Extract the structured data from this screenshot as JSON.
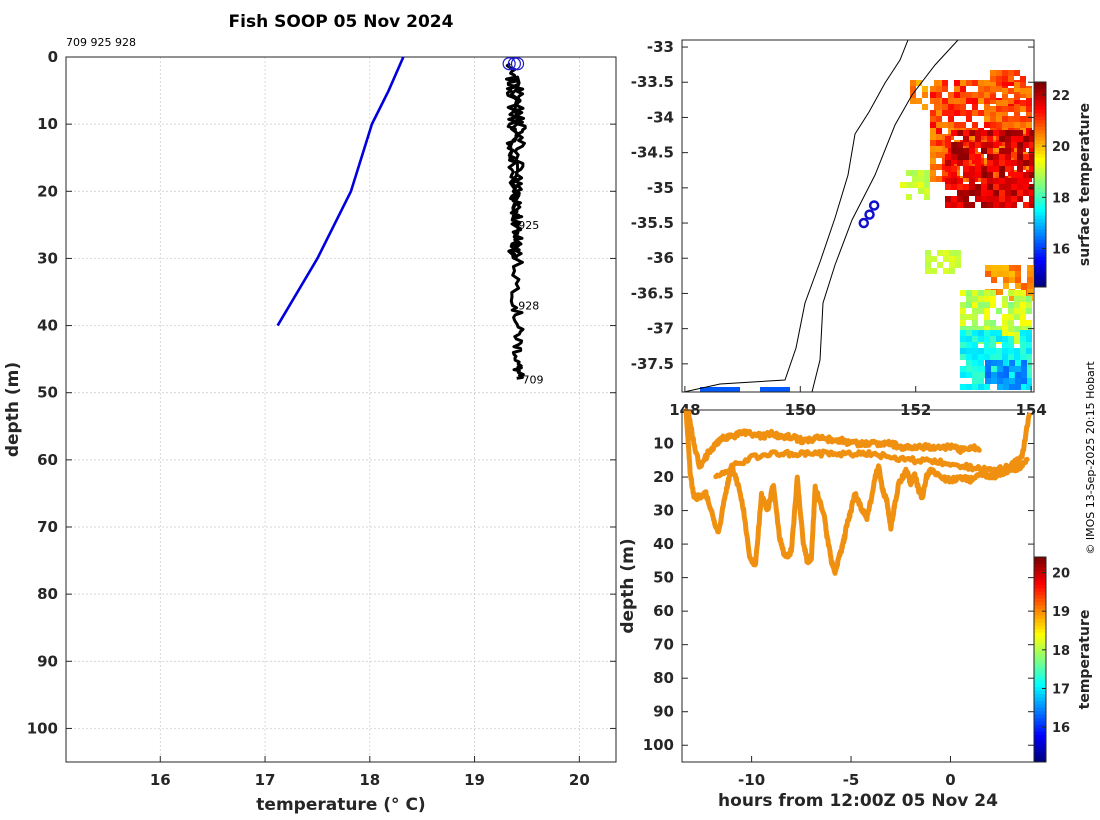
{
  "title": "Fish SOOP 05 Nov 2024",
  "credit": "© IMOS 13-Sep-2025 20:15 Hobart",
  "chart_data": [
    {
      "type": "line",
      "name": "temperature-profile",
      "ids_label": "709 925 928",
      "xlabel": "temperature (° C)",
      "ylabel": "depth (m)",
      "xlim": [
        15.1,
        20.35
      ],
      "ylim": [
        105,
        0
      ],
      "xticks": [
        "16",
        "17",
        "18",
        "19",
        "20"
      ],
      "yticks": [
        "0",
        "10",
        "20",
        "30",
        "40",
        "50",
        "60",
        "70",
        "80",
        "90",
        "100"
      ],
      "grid": true,
      "series": [
        {
          "name": "climatology",
          "color": "#0000dd",
          "x": [
            18.32,
            18.18,
            18.02,
            17.82,
            17.5,
            17.12
          ],
          "y": [
            0,
            5,
            10,
            20,
            30,
            40
          ]
        },
        {
          "name": "profiles",
          "color": "#000000",
          "x": [
            19.33,
            19.36,
            19.37,
            19.35,
            19.38,
            19.4,
            19.37,
            19.42,
            19.39,
            19.41,
            19.45,
            19.43,
            19.4,
            19.38,
            19.41,
            19.4,
            19.42,
            19.41,
            19.42
          ],
          "y": [
            1,
            5,
            10,
            15,
            20,
            25,
            30,
            27,
            22,
            18,
            12,
            8,
            3,
            15,
            28,
            37,
            42,
            46,
            48
          ]
        }
      ],
      "profile_labels": [
        {
          "text": "925",
          "x": 19.36,
          "y": 25
        },
        {
          "text": "928",
          "x": 19.36,
          "y": 37
        },
        {
          "text": "709",
          "x": 19.4,
          "y": 48
        }
      ]
    },
    {
      "type": "heatmap",
      "name": "surface-temperature-map",
      "xlim": [
        147.95,
        154.05
      ],
      "ylim": [
        -37.9,
        -32.9
      ],
      "xticks": [
        "148",
        "150",
        "152",
        "154"
      ],
      "yticks": [
        "-33",
        "-33.5",
        "-34",
        "-34.5",
        "-35",
        "-35.5",
        "-36",
        "-36.5",
        "-37",
        "-37.5"
      ],
      "colorbar_label": "surface temperature",
      "colorbar_ticks": [
        "16",
        "18",
        "20",
        "22"
      ],
      "colorbar_range": [
        14.5,
        22.5
      ],
      "track_points": [
        {
          "lon": 151.1,
          "lat": -35.5
        },
        {
          "lon": 151.2,
          "lat": -35.38
        },
        {
          "lon": 151.28,
          "lat": -35.25
        }
      ]
    },
    {
      "type": "scatter",
      "name": "depth-time-section",
      "xlabel": "hours from 12:00Z 05 Nov 24",
      "ylabel": "depth (m)",
      "xlim": [
        -13.5,
        4.2
      ],
      "ylim": [
        105,
        0
      ],
      "xticks": [
        "-10",
        "-5",
        "0"
      ],
      "yticks": [
        "10",
        "20",
        "30",
        "40",
        "50",
        "60",
        "70",
        "80",
        "90",
        "100"
      ],
      "colorbar_label": "temperature",
      "colorbar_ticks": [
        "16",
        "17",
        "18",
        "19",
        "20"
      ],
      "colorbar_range": [
        15.1,
        20.4
      ],
      "point_color": "#f09010",
      "series": [
        {
          "name": "upper-path",
          "x": [
            -13.2,
            -12.9,
            -12.6,
            -12.2,
            -11.8,
            -11.4,
            -11.0,
            -10.5,
            -10.0,
            -9.5,
            -9.0,
            -8.5,
            -8.0,
            -7.5,
            -7.0,
            -6.5,
            -6.0,
            -5.5,
            -5.0,
            -4.5,
            -4.0,
            -3.5,
            -3.0,
            -2.5,
            -2.0,
            -1.5,
            -1.0,
            -0.5,
            0.0,
            0.5,
            1.0,
            1.5
          ],
          "y": [
            0,
            10,
            17,
            13,
            10,
            8,
            8,
            7,
            7,
            8,
            7,
            8,
            8,
            9,
            9,
            8,
            9,
            9,
            10,
            10,
            10,
            10,
            10,
            11,
            11,
            11,
            11,
            11,
            11,
            12,
            11,
            12
          ]
        },
        {
          "name": "middle-path",
          "x": [
            -11.8,
            -11.0,
            -10.0,
            -9.0,
            -8.0,
            -7.0,
            -6.0,
            -5.0,
            -4.0,
            -3.0,
            -2.0,
            -1.0,
            0.0,
            1.0,
            2.0,
            3.0,
            3.6,
            4.0
          ],
          "y": [
            20,
            17,
            14,
            13,
            13,
            13,
            13,
            13,
            13,
            14,
            15,
            15,
            16,
            17,
            18,
            17,
            14,
            0
          ]
        },
        {
          "name": "lower-path",
          "x": [
            -13.3,
            -13.1,
            -12.9,
            -12.6,
            -12.3,
            -12.0,
            -11.7,
            -11.4,
            -11.2,
            -11.0,
            -10.7,
            -10.4,
            -10.1,
            -9.8,
            -9.5,
            -9.2,
            -8.9,
            -8.6,
            -8.3,
            -8.0,
            -7.7,
            -7.4,
            -7.2,
            -7.0,
            -6.8,
            -6.6,
            -6.4,
            -6.2,
            -6.0,
            -5.8,
            -5.6,
            -5.4,
            -5.2,
            -5.0,
            -4.8,
            -4.6,
            -4.4,
            -4.2,
            -4.0,
            -3.8,
            -3.6,
            -3.4,
            -3.2,
            -3.0,
            -2.8,
            -2.6,
            -2.4,
            -2.2,
            -2.0,
            -1.8,
            -1.6,
            -1.4,
            -1.2,
            -1.0,
            -0.5,
            0.0,
            0.5,
            1.0,
            1.5,
            2.0,
            2.5,
            3.0,
            3.5,
            3.9
          ],
          "y": [
            0,
            18,
            26,
            26,
            25,
            30,
            37,
            28,
            22,
            17,
            22,
            30,
            44,
            46,
            25,
            30,
            22,
            38,
            44,
            42,
            20,
            40,
            45,
            44,
            23,
            27,
            30,
            38,
            45,
            48,
            44,
            40,
            34,
            30,
            25,
            28,
            30,
            32,
            27,
            20,
            17,
            24,
            27,
            35,
            28,
            22,
            20,
            18,
            22,
            19,
            24,
            26,
            20,
            18,
            20,
            21,
            20,
            21,
            19,
            20,
            19,
            18,
            17,
            15
          ]
        }
      ]
    }
  ]
}
